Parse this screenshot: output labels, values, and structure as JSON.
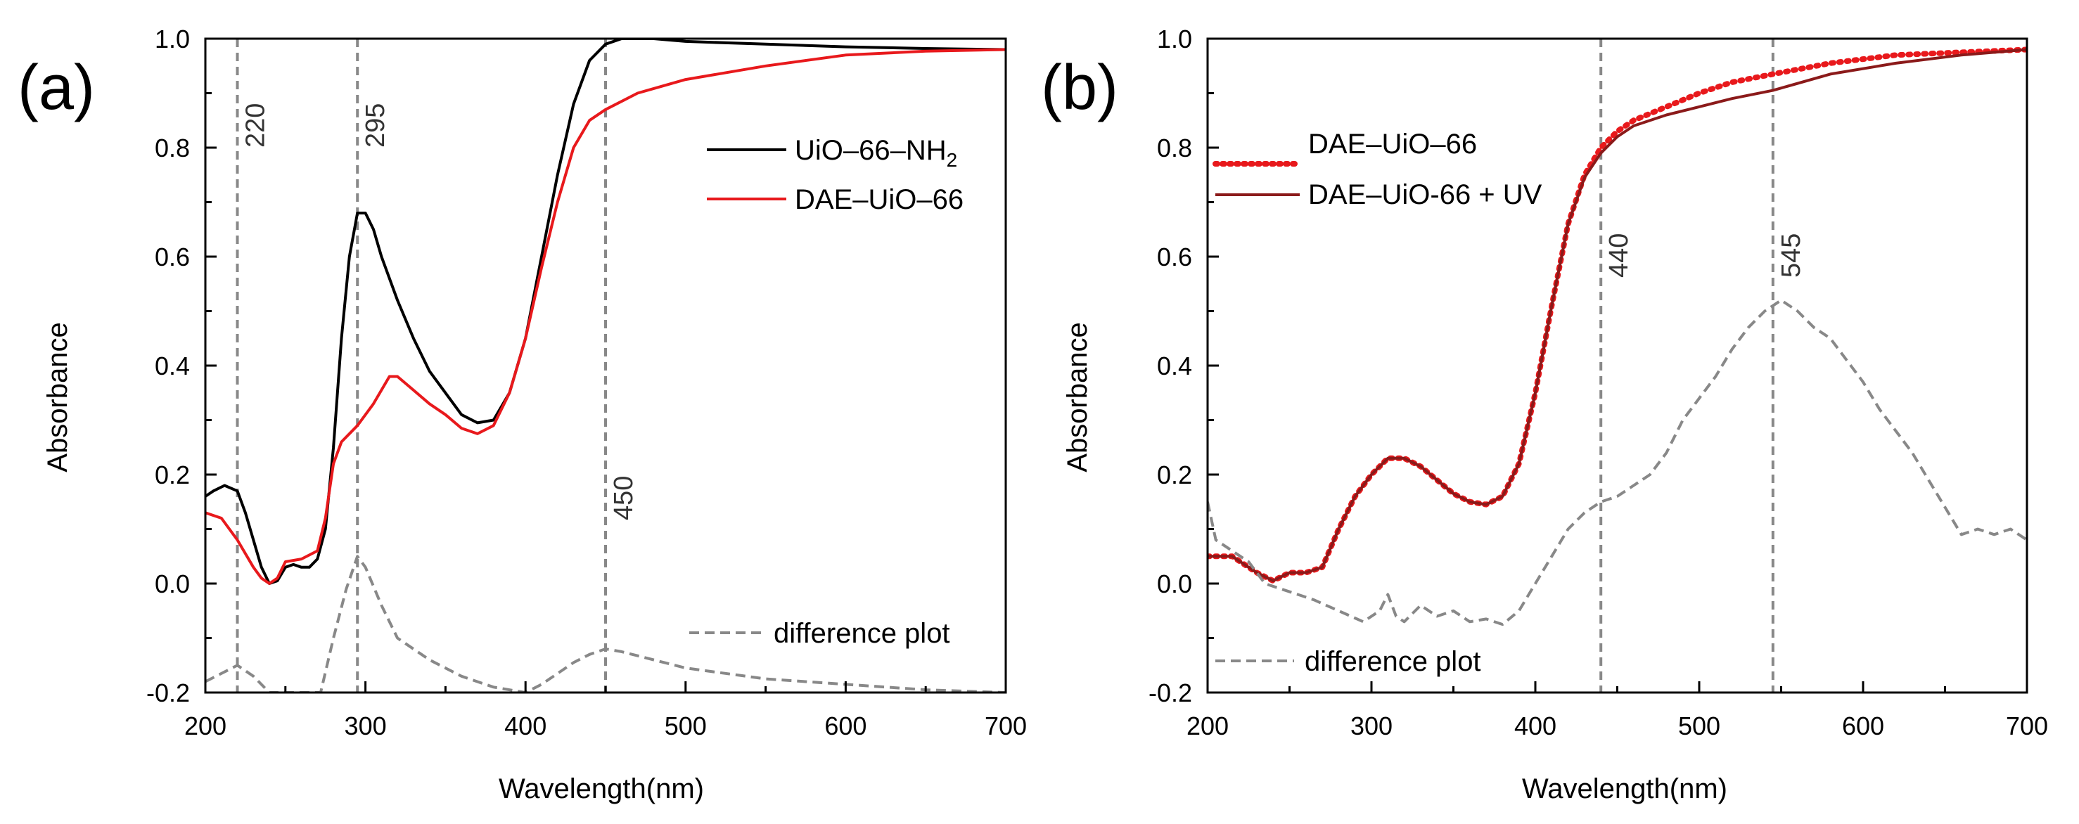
{
  "chart_data": [
    {
      "type": "line",
      "panel_label": "(a)",
      "xlabel": "Wavelength(nm)",
      "ylabel": "Absorbance",
      "xlim": [
        200,
        700
      ],
      "ylim": [
        -0.2,
        1.0
      ],
      "xticks": [
        "200",
        "300",
        "400",
        "500",
        "600",
        "700"
      ],
      "yticks": [
        "-0.2",
        "0.0",
        "0.2",
        "0.4",
        "0.6",
        "0.8",
        "1.0"
      ],
      "vlines": [
        {
          "x": 220,
          "label": "220"
        },
        {
          "x": 295,
          "label": "295"
        },
        {
          "x": 450,
          "label": "450"
        }
      ],
      "legend": [
        {
          "label_main": "UiO–66–NH",
          "label_sub": "2",
          "series": 0
        },
        {
          "label_main": "DAE–UiO–66",
          "label_sub": "",
          "series": 1
        }
      ],
      "series": [
        {
          "name": "UiO–66–NH2",
          "color": "#000000",
          "style": "solid",
          "points": [
            [
              200,
              0.16
            ],
            [
              205,
              0.17
            ],
            [
              212,
              0.18
            ],
            [
              220,
              0.17
            ],
            [
              225,
              0.13
            ],
            [
              230,
              0.08
            ],
            [
              235,
              0.03
            ],
            [
              240,
              0.0
            ],
            [
              245,
              0.005
            ],
            [
              250,
              0.03
            ],
            [
              255,
              0.035
            ],
            [
              260,
              0.03
            ],
            [
              265,
              0.03
            ],
            [
              270,
              0.045
            ],
            [
              275,
              0.1
            ],
            [
              280,
              0.25
            ],
            [
              285,
              0.45
            ],
            [
              290,
              0.6
            ],
            [
              295,
              0.68
            ],
            [
              300,
              0.68
            ],
            [
              305,
              0.65
            ],
            [
              310,
              0.6
            ],
            [
              320,
              0.52
            ],
            [
              330,
              0.45
            ],
            [
              340,
              0.39
            ],
            [
              350,
              0.35
            ],
            [
              360,
              0.31
            ],
            [
              370,
              0.295
            ],
            [
              380,
              0.3
            ],
            [
              390,
              0.35
            ],
            [
              400,
              0.45
            ],
            [
              410,
              0.6
            ],
            [
              420,
              0.75
            ],
            [
              430,
              0.88
            ],
            [
              440,
              0.96
            ],
            [
              450,
              0.99
            ],
            [
              460,
              1.0
            ],
            [
              480,
              1.0
            ],
            [
              500,
              0.995
            ],
            [
              550,
              0.99
            ],
            [
              600,
              0.985
            ],
            [
              650,
              0.982
            ],
            [
              700,
              0.98
            ]
          ]
        },
        {
          "name": "DAE–UiO–66",
          "color": "#e8191c",
          "style": "solid",
          "points": [
            [
              200,
              0.13
            ],
            [
              210,
              0.12
            ],
            [
              220,
              0.08
            ],
            [
              230,
              0.03
            ],
            [
              235,
              0.01
            ],
            [
              240,
              0.0
            ],
            [
              245,
              0.01
            ],
            [
              250,
              0.04
            ],
            [
              260,
              0.045
            ],
            [
              270,
              0.06
            ],
            [
              275,
              0.12
            ],
            [
              280,
              0.22
            ],
            [
              285,
              0.26
            ],
            [
              295,
              0.29
            ],
            [
              305,
              0.33
            ],
            [
              315,
              0.38
            ],
            [
              320,
              0.38
            ],
            [
              330,
              0.355
            ],
            [
              340,
              0.33
            ],
            [
              350,
              0.31
            ],
            [
              360,
              0.285
            ],
            [
              370,
              0.275
            ],
            [
              380,
              0.29
            ],
            [
              390,
              0.35
            ],
            [
              400,
              0.45
            ],
            [
              410,
              0.58
            ],
            [
              420,
              0.7
            ],
            [
              430,
              0.8
            ],
            [
              440,
              0.85
            ],
            [
              450,
              0.87
            ],
            [
              470,
              0.9
            ],
            [
              500,
              0.925
            ],
            [
              550,
              0.95
            ],
            [
              600,
              0.97
            ],
            [
              650,
              0.977
            ],
            [
              700,
              0.98
            ]
          ]
        },
        {
          "name": "difference plot",
          "color": "#888888",
          "style": "dashed",
          "points": [
            [
              200,
              -0.18
            ],
            [
              210,
              -0.165
            ],
            [
              220,
              -0.15
            ],
            [
              230,
              -0.17
            ],
            [
              240,
              -0.2
            ],
            [
              272,
              -0.2
            ],
            [
              280,
              -0.1
            ],
            [
              288,
              -0.01
            ],
            [
              295,
              0.05
            ],
            [
              300,
              0.03
            ],
            [
              310,
              -0.04
            ],
            [
              320,
              -0.1
            ],
            [
              340,
              -0.14
            ],
            [
              360,
              -0.17
            ],
            [
              380,
              -0.19
            ],
            [
              400,
              -0.2
            ],
            [
              410,
              -0.185
            ],
            [
              420,
              -0.165
            ],
            [
              430,
              -0.145
            ],
            [
              440,
              -0.13
            ],
            [
              450,
              -0.12
            ],
            [
              460,
              -0.125
            ],
            [
              480,
              -0.14
            ],
            [
              500,
              -0.155
            ],
            [
              550,
              -0.175
            ],
            [
              600,
              -0.185
            ],
            [
              650,
              -0.195
            ],
            [
              700,
              -0.2
            ]
          ]
        }
      ]
    },
    {
      "type": "line",
      "panel_label": "(b)",
      "xlabel": "Wavelength(nm)",
      "ylabel": "Absorbance",
      "xlim": [
        200,
        700
      ],
      "ylim": [
        -0.2,
        1.0
      ],
      "xticks": [
        "200",
        "300",
        "400",
        "500",
        "600",
        "700"
      ],
      "yticks": [
        "-0.2",
        "0.0",
        "0.2",
        "0.4",
        "0.6",
        "0.8",
        "1.0"
      ],
      "vlines": [
        {
          "x": 440,
          "label": "440"
        },
        {
          "x": 545,
          "label": "545"
        }
      ],
      "legend": [
        {
          "label_main": "DAE–UiO–66",
          "label_sub": "",
          "series": 0
        },
        {
          "label_main": "DAE–UiO-66 + UV",
          "label_sub": "",
          "series": 1
        }
      ],
      "series": [
        {
          "name": "DAE–UiO–66",
          "color": "#e8191c",
          "style": "dotted",
          "points": [
            [
              200,
              0.05
            ],
            [
              215,
              0.05
            ],
            [
              230,
              0.02
            ],
            [
              240,
              0.005
            ],
            [
              250,
              0.02
            ],
            [
              260,
              0.02
            ],
            [
              270,
              0.03
            ],
            [
              280,
              0.1
            ],
            [
              290,
              0.16
            ],
            [
              300,
              0.2
            ],
            [
              310,
              0.23
            ],
            [
              320,
              0.23
            ],
            [
              330,
              0.215
            ],
            [
              340,
              0.19
            ],
            [
              350,
              0.165
            ],
            [
              360,
              0.15
            ],
            [
              370,
              0.145
            ],
            [
              380,
              0.16
            ],
            [
              390,
              0.22
            ],
            [
              400,
              0.35
            ],
            [
              410,
              0.51
            ],
            [
              420,
              0.66
            ],
            [
              430,
              0.75
            ],
            [
              440,
              0.8
            ],
            [
              450,
              0.83
            ],
            [
              460,
              0.85
            ],
            [
              480,
              0.875
            ],
            [
              500,
              0.9
            ],
            [
              520,
              0.92
            ],
            [
              545,
              0.935
            ],
            [
              580,
              0.955
            ],
            [
              620,
              0.97
            ],
            [
              660,
              0.975
            ],
            [
              700,
              0.98
            ]
          ]
        },
        {
          "name": "DAE–UiO-66 + UV",
          "color": "#8b1a1a",
          "style": "solid",
          "points": [
            [
              200,
              0.05
            ],
            [
              215,
              0.05
            ],
            [
              230,
              0.02
            ],
            [
              240,
              0.005
            ],
            [
              250,
              0.02
            ],
            [
              260,
              0.02
            ],
            [
              270,
              0.03
            ],
            [
              280,
              0.1
            ],
            [
              290,
              0.16
            ],
            [
              300,
              0.2
            ],
            [
              310,
              0.23
            ],
            [
              320,
              0.23
            ],
            [
              330,
              0.215
            ],
            [
              340,
              0.19
            ],
            [
              350,
              0.165
            ],
            [
              360,
              0.15
            ],
            [
              370,
              0.145
            ],
            [
              380,
              0.16
            ],
            [
              390,
              0.22
            ],
            [
              400,
              0.35
            ],
            [
              410,
              0.51
            ],
            [
              420,
              0.66
            ],
            [
              430,
              0.745
            ],
            [
              440,
              0.79
            ],
            [
              450,
              0.82
            ],
            [
              460,
              0.84
            ],
            [
              480,
              0.86
            ],
            [
              500,
              0.875
            ],
            [
              520,
              0.89
            ],
            [
              545,
              0.905
            ],
            [
              580,
              0.935
            ],
            [
              620,
              0.955
            ],
            [
              660,
              0.97
            ],
            [
              700,
              0.98
            ]
          ]
        },
        {
          "name": "difference plot",
          "color": "#888888",
          "style": "dashed",
          "points": [
            [
              200,
              0.15
            ],
            [
              205,
              0.08
            ],
            [
              215,
              0.06
            ],
            [
              225,
              0.04
            ],
            [
              235,
              0.0
            ],
            [
              245,
              -0.01
            ],
            [
              255,
              -0.02
            ],
            [
              265,
              -0.03
            ],
            [
              280,
              -0.05
            ],
            [
              295,
              -0.07
            ],
            [
              305,
              -0.05
            ],
            [
              310,
              -0.02
            ],
            [
              315,
              -0.06
            ],
            [
              320,
              -0.07
            ],
            [
              330,
              -0.04
            ],
            [
              340,
              -0.06
            ],
            [
              350,
              -0.05
            ],
            [
              360,
              -0.07
            ],
            [
              370,
              -0.065
            ],
            [
              380,
              -0.075
            ],
            [
              390,
              -0.05
            ],
            [
              400,
              0.0
            ],
            [
              410,
              0.05
            ],
            [
              420,
              0.1
            ],
            [
              430,
              0.13
            ],
            [
              440,
              0.15
            ],
            [
              450,
              0.16
            ],
            [
              460,
              0.18
            ],
            [
              470,
              0.2
            ],
            [
              480,
              0.24
            ],
            [
              490,
              0.3
            ],
            [
              500,
              0.34
            ],
            [
              510,
              0.38
            ],
            [
              520,
              0.43
            ],
            [
              530,
              0.47
            ],
            [
              540,
              0.5
            ],
            [
              550,
              0.52
            ],
            [
              560,
              0.5
            ],
            [
              570,
              0.47
            ],
            [
              580,
              0.45
            ],
            [
              590,
              0.41
            ],
            [
              600,
              0.37
            ],
            [
              610,
              0.32
            ],
            [
              620,
              0.28
            ],
            [
              630,
              0.24
            ],
            [
              640,
              0.19
            ],
            [
              650,
              0.14
            ],
            [
              660,
              0.09
            ],
            [
              670,
              0.1
            ],
            [
              680,
              0.09
            ],
            [
              690,
              0.1
            ],
            [
              700,
              0.08
            ]
          ]
        }
      ]
    }
  ],
  "annotations": {
    "diff_legend_label": "difference plot"
  }
}
